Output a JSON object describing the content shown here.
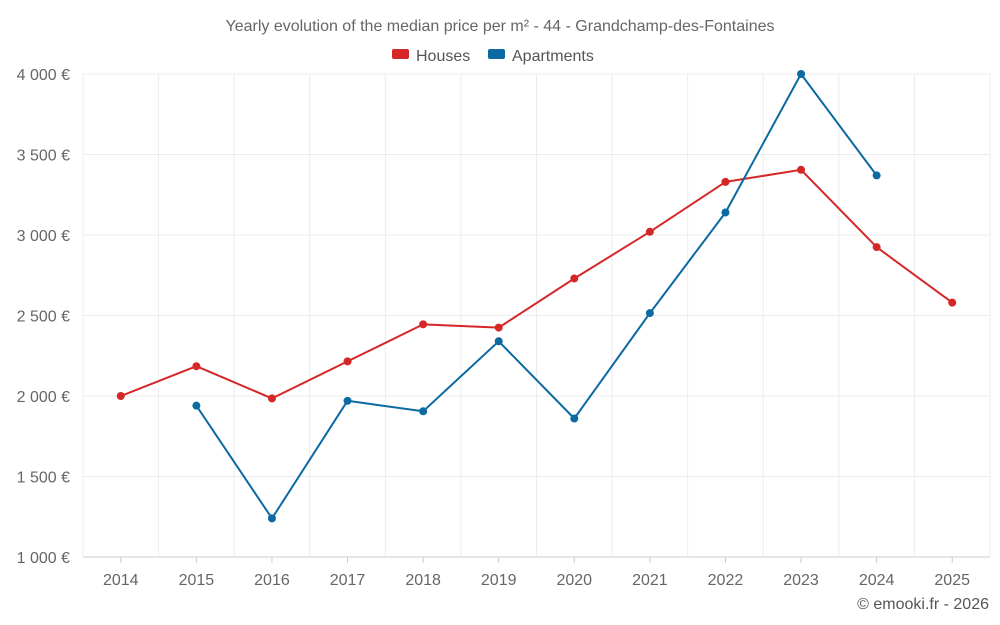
{
  "chart_data": {
    "type": "line",
    "title": "Yearly evolution of the median price per m² - 44 - Grandchamp-des-Fontaines",
    "categories": [
      "2014",
      "2015",
      "2016",
      "2017",
      "2018",
      "2019",
      "2020",
      "2021",
      "2022",
      "2023",
      "2024",
      "2025"
    ],
    "ylim": [
      1000,
      4000
    ],
    "yticks": [
      1000,
      1500,
      2000,
      2500,
      3000,
      3500,
      4000
    ],
    "ytick_labels": [
      "1 000 €",
      "1 500 €",
      "2 000 €",
      "2 500 €",
      "3 000 €",
      "3 500 €",
      "4 000 €"
    ],
    "legend_position": "top-center",
    "grid": true,
    "series": [
      {
        "name": "Houses",
        "color": "#d62728",
        "values": [
          2000,
          2185,
          1985,
          2215,
          2445,
          2425,
          2730,
          3020,
          3330,
          3405,
          2925,
          2580
        ]
      },
      {
        "name": "Apartments",
        "color": "#0b6aa2",
        "values": [
          null,
          1940,
          1240,
          1970,
          1905,
          2340,
          1860,
          2515,
          3140,
          4000,
          3370,
          null
        ]
      }
    ]
  },
  "credit": "© emooki.fr - 2026"
}
